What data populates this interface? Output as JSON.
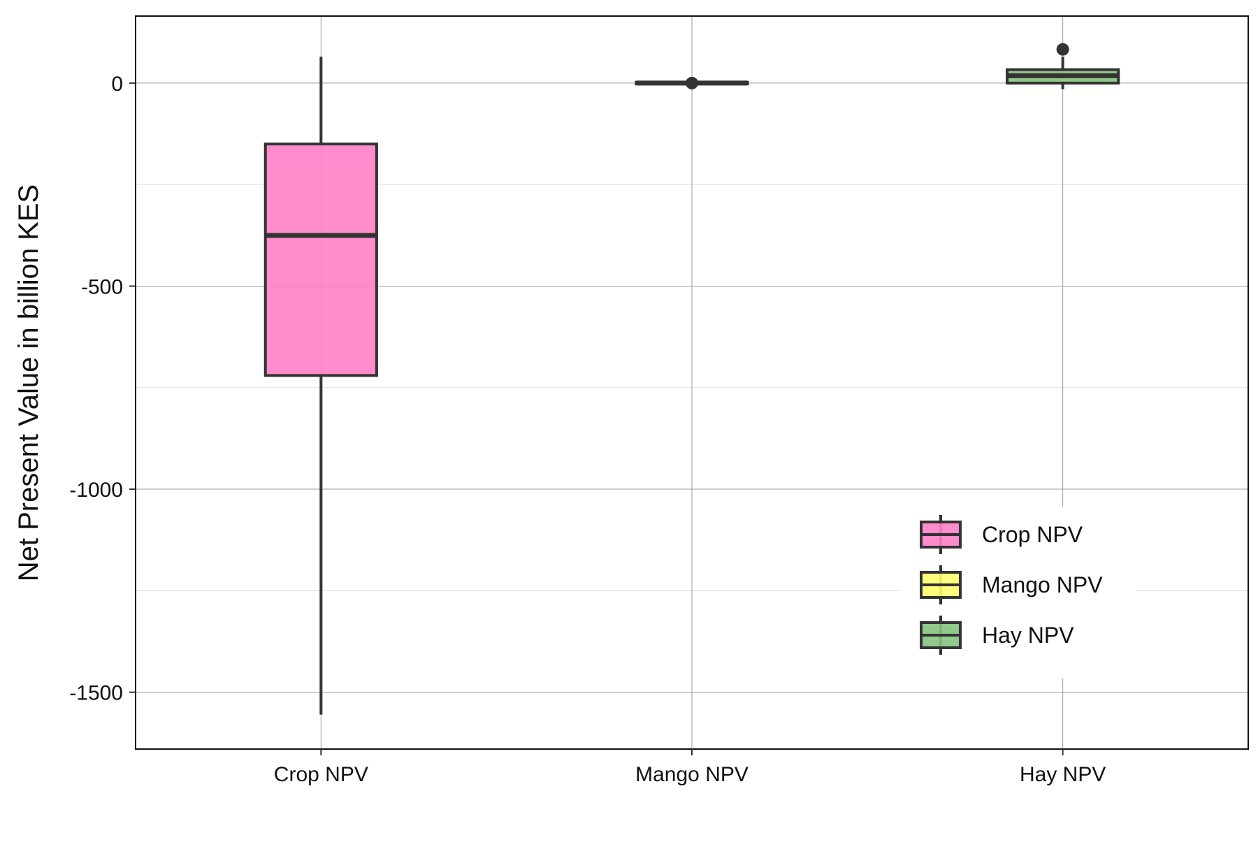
{
  "chart_data": {
    "type": "boxplot",
    "title": "",
    "xlabel": "",
    "ylabel": "Net Present Value in billion KES",
    "ylim": [
      -1640,
      165
    ],
    "yticks": [
      0,
      -500,
      -1000,
      -1500
    ],
    "ytick_labels": [
      "0",
      "-500",
      "-1000",
      "-1500"
    ],
    "grid": true,
    "legend_position": "bottom-right",
    "categories": [
      "Crop NPV",
      "Mango NPV",
      "Hay NPV"
    ],
    "series": [
      {
        "name": "Crop NPV",
        "color": "#ff7fc6",
        "whisker_low": -1555,
        "q1": -720,
        "median": -375,
        "q3": -150,
        "whisker_high": 65,
        "outliers": []
      },
      {
        "name": "Mango NPV",
        "color": "#ffff6e",
        "whisker_low": -4,
        "q1": -2,
        "median": 0,
        "q3": 2,
        "whisker_high": 4,
        "outliers": [
          0
        ]
      },
      {
        "name": "Hay NPV",
        "color": "#85c27f",
        "whisker_low": -15,
        "q1": 0,
        "median": 18,
        "q3": 33,
        "whisker_high": 65,
        "outliers": [
          83
        ]
      }
    ]
  }
}
